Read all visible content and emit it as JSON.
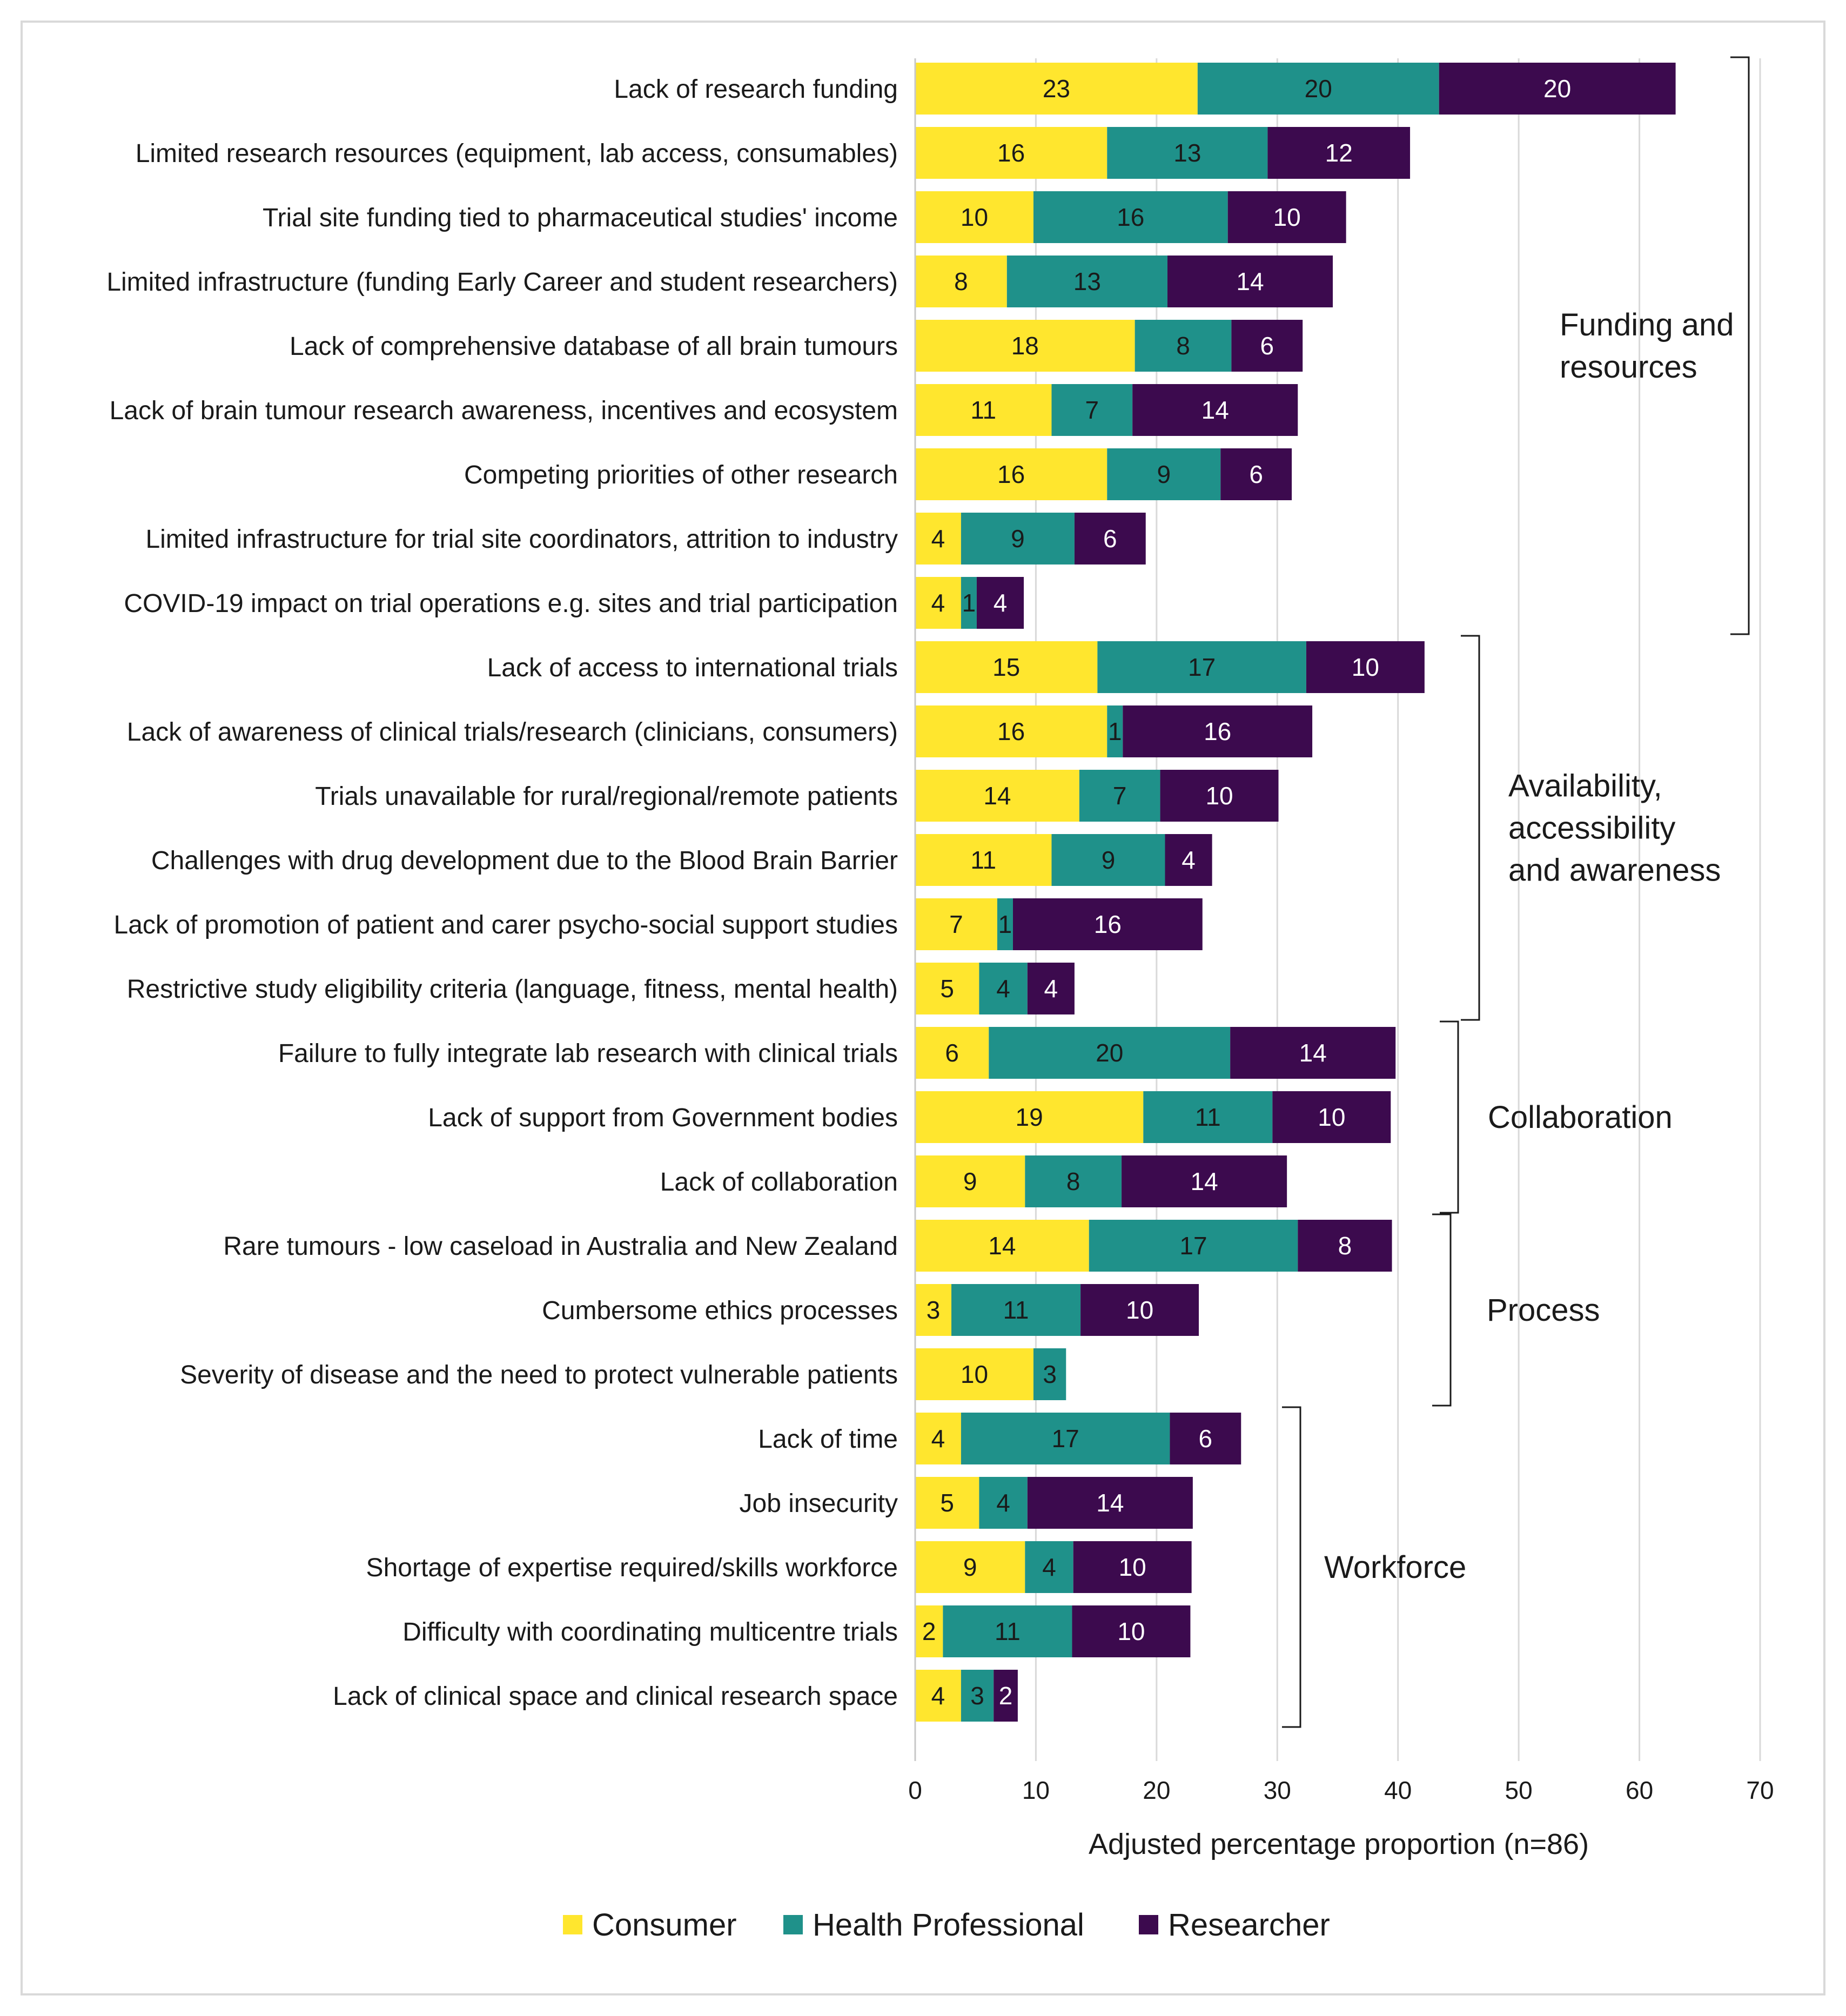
{
  "chart_data": {
    "type": "bar",
    "orientation": "horizontal",
    "stacked": true,
    "title": "",
    "xlabel": "Adjusted percentage proportion (n=86)",
    "ylabel": "",
    "xlim": [
      0,
      70
    ],
    "x_ticks": [
      "0",
      "10",
      "20",
      "30",
      "40",
      "50",
      "60",
      "70"
    ],
    "grid": "vertical",
    "legend_position": "bottom",
    "categories": [
      "Lack of research funding",
      "Limited research resources (equipment, lab access, consumables)",
      "Trial site funding tied to pharmaceutical studies' income",
      "Limited infrastructure (funding Early Career and student researchers)",
      "Lack of comprehensive database of all brain tumours",
      "Lack of brain tumour research awareness, incentives and ecosystem",
      "Competing priorities of other research",
      "Limited infrastructure for trial site coordinators, attrition to industry",
      "COVID-19 impact on trial operations e.g. sites and trial participation",
      "Lack of access to international trials",
      "Lack of awareness of clinical trials/research (clinicians, consumers)",
      "Trials unavailable for rural/regional/remote patients",
      "Challenges with drug development due to the Blood Brain Barrier",
      "Lack of promotion of patient and carer psycho-social support studies",
      "Restrictive study eligibility criteria (language, fitness, mental health)",
      "Failure to fully integrate lab research with clinical trials",
      "Lack of support from Government bodies",
      "Lack of collaboration",
      "Rare tumours - low caseload in Australia and New Zealand",
      "Cumbersome ethics processes",
      "Severity of disease and the need to protect vulnerable patients",
      "Lack of time",
      "Job insecurity",
      "Shortage of expertise required/skills workforce",
      "Difficulty with coordinating multicentre trials",
      "Lack of clinical space and clinical research space"
    ],
    "series": [
      {
        "name": "Consumer",
        "color": "#FFE62E",
        "values": [
          23.4,
          15.9,
          9.8,
          7.6,
          18.2,
          11.3,
          15.9,
          3.8,
          3.8,
          15.1,
          15.9,
          13.6,
          11.3,
          6.8,
          5.3,
          6.1,
          18.9,
          9.1,
          14.4,
          3.0,
          9.8,
          3.8,
          5.3,
          9.1,
          2.3,
          3.8
        ],
        "labels": [
          "23",
          "16",
          "10",
          "8",
          "18",
          "11",
          "16",
          "4",
          "4",
          "15",
          "16",
          "14",
          "11",
          "7",
          "5",
          "6",
          "19",
          "9",
          "14",
          "3",
          "10",
          "4",
          "5",
          "9",
          "2",
          "4"
        ]
      },
      {
        "name": "Health Professional",
        "color": "#1F918A",
        "values": [
          20.0,
          13.3,
          16.1,
          13.3,
          8.0,
          6.7,
          9.4,
          9.4,
          1.3,
          17.3,
          1.3,
          6.7,
          9.4,
          1.3,
          4.0,
          20.0,
          10.7,
          8.0,
          17.3,
          10.7,
          2.7,
          17.3,
          4.0,
          4.0,
          10.7,
          2.7
        ],
        "labels": [
          "20",
          "13",
          "16",
          "13",
          "8",
          "7",
          "9",
          "9",
          "1",
          "17",
          "1",
          "7",
          "9",
          "1",
          "4",
          "20",
          "11",
          "8",
          "17",
          "11",
          "3",
          "17",
          "4",
          "4",
          "11",
          "3"
        ]
      },
      {
        "name": "Researcher",
        "color": "#3C0A4E",
        "values": [
          19.6,
          11.8,
          9.8,
          13.7,
          5.9,
          13.7,
          5.9,
          5.9,
          3.9,
          9.8,
          15.7,
          9.8,
          3.9,
          15.7,
          3.9,
          13.7,
          9.8,
          13.7,
          7.8,
          9.8,
          0,
          5.9,
          13.7,
          9.8,
          9.8,
          2.0
        ],
        "labels": [
          "20",
          "12",
          "10",
          "14",
          "6",
          "14",
          "6",
          "6",
          "4",
          "10",
          "16",
          "10",
          "4",
          "16",
          "4",
          "14",
          "10",
          "14",
          "8",
          "10",
          "",
          "6",
          "14",
          "10",
          "10",
          "2"
        ]
      }
    ],
    "groups": [
      {
        "label_lines": [
          "Funding and",
          "resources"
        ],
        "from": 0,
        "to": 8
      },
      {
        "label_lines": [
          "Availability,",
          "accessibility",
          "and awareness"
        ],
        "from": 9,
        "to": 14
      },
      {
        "label_lines": [
          "Collaboration"
        ],
        "from": 15,
        "to": 17
      },
      {
        "label_lines": [
          "Process"
        ],
        "from": 18,
        "to": 20
      },
      {
        "label_lines": [
          "Workforce"
        ],
        "from": 21,
        "to": 25
      }
    ]
  }
}
